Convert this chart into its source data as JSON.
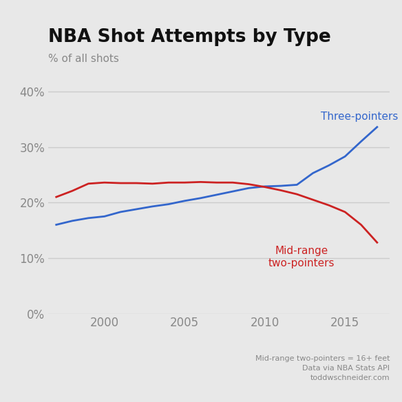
{
  "title": "NBA Shot Attempts by Type",
  "subtitle": "% of all shots",
  "footnote1": "Mid-range two-pointers = 16+ feet",
  "footnote2": "Data via NBA Stats API",
  "footnote3": "toddwschneider.com",
  "three_label": "Three-pointers",
  "mid_label": "Mid-range\ntwo-pointers",
  "three_color": "#3366cc",
  "mid_color": "#cc2222",
  "background_color": "#e8e8e8",
  "grid_color": "#cccccc",
  "tick_color": "#888888",
  "title_color": "#111111",
  "years": [
    1997,
    1998,
    1999,
    2000,
    2001,
    2002,
    2003,
    2004,
    2005,
    2006,
    2007,
    2008,
    2009,
    2010,
    2011,
    2012,
    2013,
    2014,
    2015,
    2016,
    2017
  ],
  "three_pct": [
    0.16,
    0.167,
    0.172,
    0.175,
    0.183,
    0.188,
    0.193,
    0.197,
    0.203,
    0.208,
    0.214,
    0.22,
    0.226,
    0.229,
    0.23,
    0.232,
    0.253,
    0.267,
    0.283,
    0.31,
    0.336
  ],
  "mid_pct": [
    0.21,
    0.221,
    0.234,
    0.236,
    0.235,
    0.235,
    0.234,
    0.236,
    0.236,
    0.237,
    0.236,
    0.236,
    0.233,
    0.228,
    0.222,
    0.215,
    0.205,
    0.195,
    0.183,
    0.16,
    0.128
  ],
  "ylim": [
    0,
    0.42
  ],
  "yticks": [
    0,
    0.1,
    0.2,
    0.3,
    0.4
  ],
  "xlim": [
    1996.5,
    2017.8
  ],
  "xticks": [
    2000,
    2005,
    2010,
    2015
  ]
}
